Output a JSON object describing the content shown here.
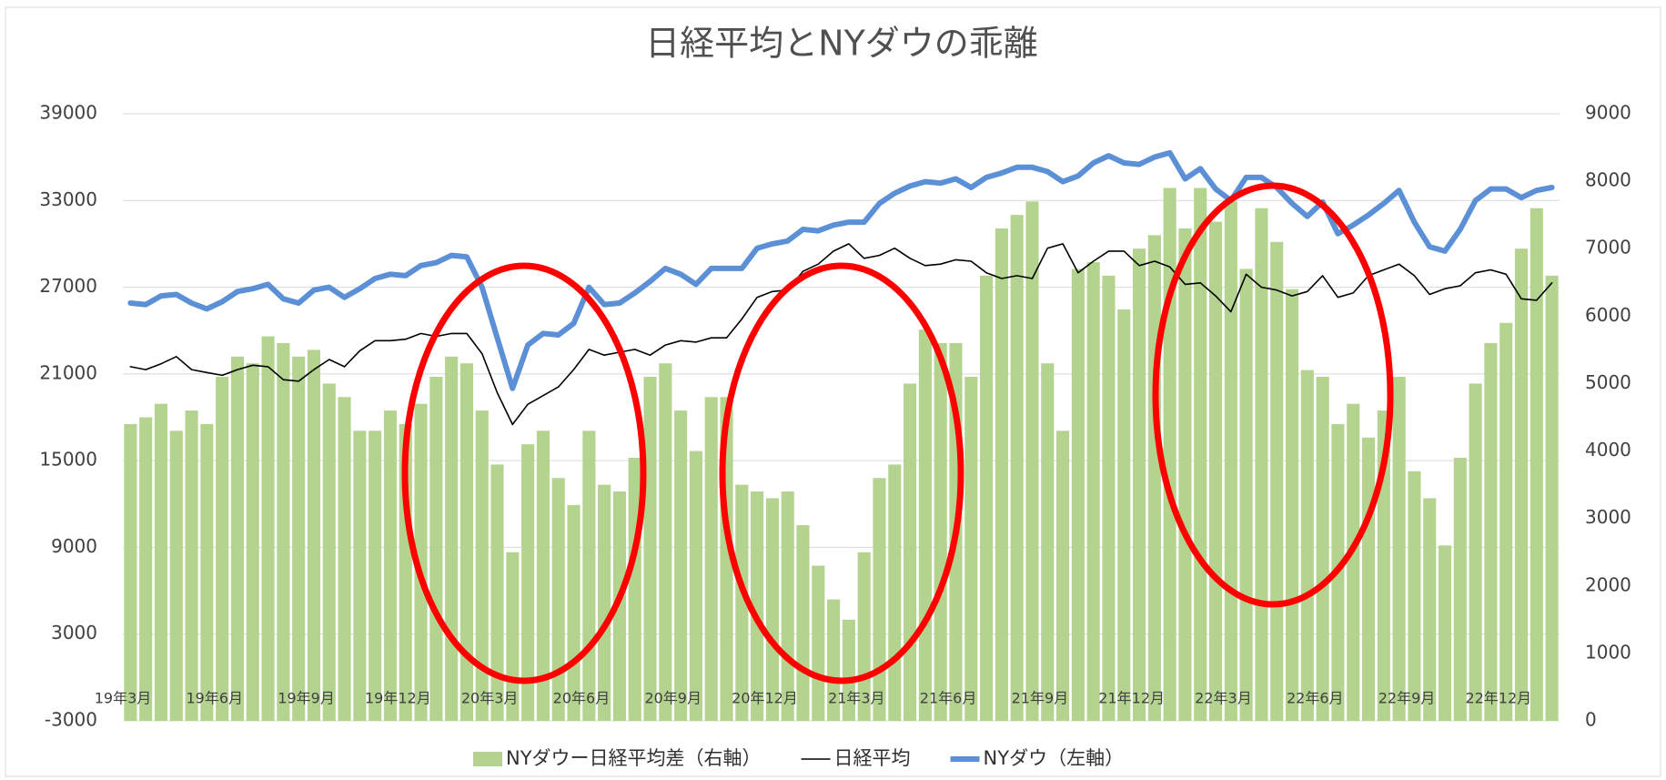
{
  "chart_data": {
    "type": "combo",
    "title": "日経平均とNYダウの乖離",
    "categories": [
      "19年3月",
      null,
      null,
      null,
      null,
      null,
      "19年6月",
      null,
      null,
      null,
      null,
      null,
      "19年9月",
      null,
      null,
      null,
      null,
      null,
      "19年12月",
      null,
      null,
      null,
      null,
      null,
      "20年3月",
      null,
      null,
      null,
      null,
      null,
      "20年6月",
      null,
      null,
      null,
      null,
      null,
      "20年9月",
      null,
      null,
      null,
      null,
      null,
      "20年12月",
      null,
      null,
      null,
      null,
      null,
      "21年3月",
      null,
      null,
      null,
      null,
      null,
      "21年6月",
      null,
      null,
      null,
      null,
      null,
      "21年9月",
      null,
      null,
      null,
      null,
      null,
      "21年12月",
      null,
      null,
      null,
      null,
      null,
      "22年3月",
      null,
      null,
      null,
      null,
      null,
      "22年6月",
      null,
      null,
      null,
      null,
      null,
      "22年9月",
      null,
      null,
      null,
      null,
      null,
      "22年12月",
      null,
      null,
      null
    ],
    "series": [
      {
        "name": "NYダウー日経平均差（右軸）",
        "type": "bar",
        "axis": "y2",
        "color": "#b4d38f",
        "values": [
          4400,
          4500,
          4700,
          4300,
          4600,
          4400,
          5100,
          5400,
          5300,
          5700,
          5600,
          5400,
          5500,
          5000,
          4800,
          4300,
          4300,
          4600,
          4400,
          4700,
          5100,
          5400,
          5300,
          4600,
          3800,
          2500,
          4100,
          4300,
          3600,
          3200,
          4300,
          3500,
          3400,
          3900,
          5100,
          5300,
          4600,
          4000,
          4800,
          4800,
          3500,
          3400,
          3300,
          3400,
          2900,
          2300,
          1800,
          1500,
          2500,
          3600,
          3800,
          5000,
          5800,
          5600,
          5600,
          5100,
          6600,
          7300,
          7500,
          7700,
          5300,
          4300,
          6700,
          6800,
          6600,
          6100,
          7000,
          7200,
          7900,
          7300,
          7900,
          7400,
          7700,
          6700,
          7600,
          7100,
          6400,
          5200,
          5100,
          4400,
          4700,
          4200,
          4600,
          5100,
          3700,
          3300,
          2600,
          3900,
          5000,
          5600,
          5900,
          7000,
          7600,
          6600
        ]
      },
      {
        "name": "日経平均",
        "type": "line",
        "color": "#000000",
        "values": [
          21500,
          21300,
          21700,
          22200,
          21300,
          21100,
          20900,
          21300,
          21600,
          21500,
          20600,
          20500,
          21300,
          22000,
          21500,
          22600,
          23300,
          23300,
          23400,
          23800,
          23600,
          23800,
          23800,
          22400,
          19700,
          17500,
          18900,
          19500,
          20100,
          21300,
          22700,
          22300,
          22500,
          22700,
          22300,
          23000,
          23300,
          23200,
          23500,
          23500,
          24800,
          26300,
          26700,
          26800,
          28100,
          28600,
          29500,
          30000,
          29000,
          29200,
          29700,
          29000,
          28500,
          28600,
          28900,
          28800,
          28000,
          27600,
          27800,
          27600,
          29700,
          30000,
          28000,
          28800,
          29500,
          29500,
          28500,
          28800,
          28400,
          27200,
          27300,
          26400,
          25300,
          27900,
          27000,
          26800,
          26400,
          26700,
          27800,
          26300,
          26600,
          27800,
          28200,
          28600,
          27800,
          26500,
          26900,
          27100,
          28000,
          28200,
          27900,
          26200,
          26100,
          27300
        ]
      },
      {
        "name": "NYダウ（左軸）",
        "type": "line",
        "color": "#5b8fd6",
        "values": [
          25900,
          25800,
          26400,
          26500,
          25900,
          25500,
          26000,
          26700,
          26900,
          27200,
          26200,
          25900,
          26800,
          27000,
          26300,
          26900,
          27600,
          27900,
          27800,
          28500,
          28700,
          29200,
          29100,
          27000,
          23500,
          20000,
          23000,
          23800,
          23700,
          24500,
          27000,
          25800,
          25900,
          26600,
          27400,
          28300,
          27900,
          27200,
          28300,
          28300,
          28300,
          29700,
          30000,
          30200,
          31000,
          30900,
          31300,
          31500,
          31500,
          32800,
          33500,
          34000,
          34300,
          34200,
          34500,
          33900,
          34600,
          34900,
          35300,
          35300,
          35000,
          34300,
          34700,
          35600,
          36100,
          35600,
          35500,
          36000,
          36300,
          34500,
          35200,
          33800,
          33000,
          34600,
          34600,
          33900,
          32800,
          31900,
          32900,
          30700,
          31300,
          32000,
          32800,
          33700,
          31500,
          29800,
          29500,
          31000,
          33000,
          33800,
          33800,
          33200,
          33700,
          33900
        ]
      }
    ],
    "ylim": [
      -3000,
      39000
    ],
    "yticks": [
      -3000,
      3000,
      9000,
      15000,
      21000,
      27000,
      33000,
      39000
    ],
    "y2lim": [
      0,
      9000
    ],
    "y2ticks": [
      0,
      1000,
      2000,
      3000,
      4000,
      5000,
      6000,
      7000,
      8000,
      9000
    ],
    "grid": true,
    "legend": "bottom"
  }
}
